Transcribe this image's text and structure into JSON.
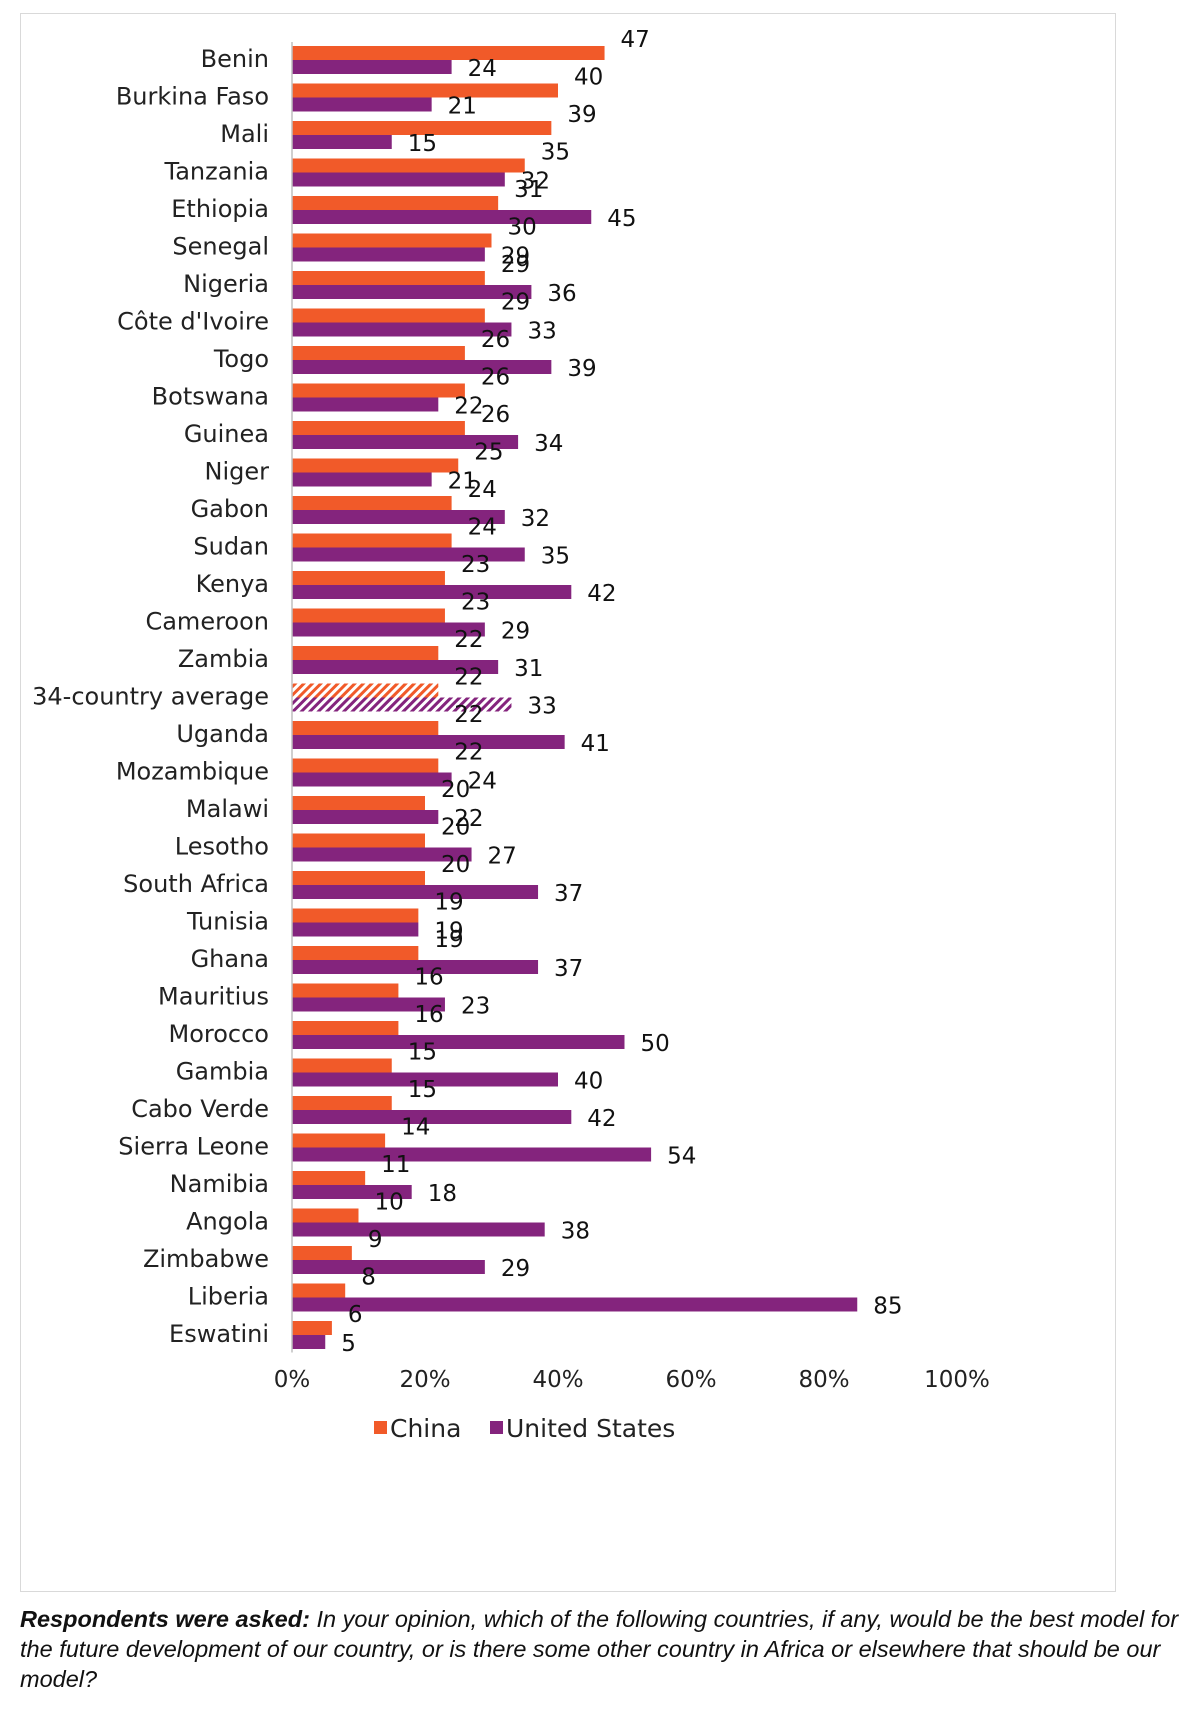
{
  "chart_data": {
    "type": "bar",
    "orientation": "horizontal",
    "categories": [
      "Benin",
      "Burkina Faso",
      "Mali",
      "Tanzania",
      "Ethiopia",
      "Senegal",
      "Nigeria",
      "Côte d'Ivoire",
      "Togo",
      "Botswana",
      "Guinea",
      "Niger",
      "Gabon",
      "Sudan",
      "Kenya",
      "Cameroon",
      "Zambia",
      "34-country average",
      "Uganda",
      "Mozambique",
      "Malawi",
      "Lesotho",
      "South Africa",
      "Tunisia",
      "Ghana",
      "Mauritius",
      "Morocco",
      "Gambia",
      "Cabo Verde",
      "Sierra Leone",
      "Namibia",
      "Angola",
      "Zimbabwe",
      "Liberia",
      "Eswatini"
    ],
    "highlight_category": "34-country average",
    "series": [
      {
        "name": "China",
        "color": "#f15a29",
        "values": [
          47,
          40,
          39,
          35,
          31,
          30,
          29,
          29,
          26,
          26,
          26,
          25,
          24,
          24,
          23,
          23,
          22,
          22,
          22,
          22,
          20,
          20,
          20,
          19,
          19,
          16,
          16,
          15,
          15,
          14,
          11,
          10,
          9,
          8,
          6
        ]
      },
      {
        "name": "United States",
        "color": "#84247d",
        "values": [
          24,
          21,
          15,
          32,
          45,
          29,
          36,
          33,
          39,
          22,
          34,
          21,
          32,
          35,
          42,
          29,
          31,
          33,
          41,
          24,
          22,
          27,
          37,
          19,
          37,
          23,
          50,
          40,
          42,
          54,
          18,
          38,
          29,
          85,
          5
        ]
      }
    ],
    "xlim": [
      0,
      100
    ],
    "xticks": [
      "0%",
      "20%",
      "40%",
      "60%",
      "80%",
      "100%"
    ],
    "legend_position": "bottom",
    "xlabel": "",
    "ylabel": ""
  },
  "footnote": {
    "lead": "Respondents were asked:",
    "text": "In your opinion, which of the following countries, if any, would be the best model for the future development of our country, or is there some other country in Africa or elsewhere that should be our model?"
  }
}
